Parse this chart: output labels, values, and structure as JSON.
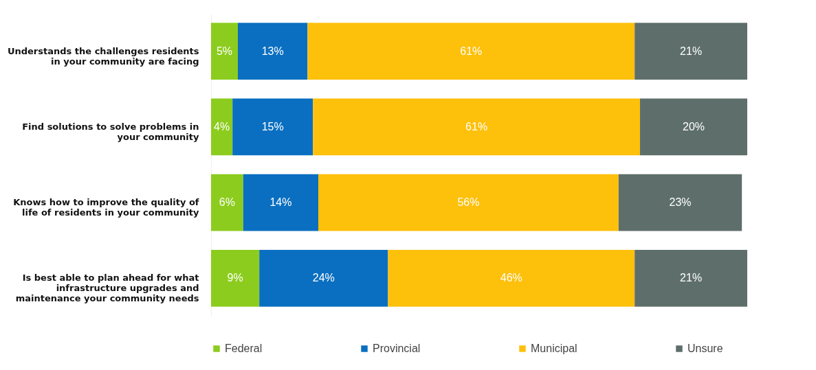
{
  "chart_data": {
    "type": "bar",
    "orientation": "horizontal",
    "stacked": true,
    "legend": "bottom",
    "categories": [
      "Understands the challenges residents in your community are facing",
      "Find solutions to solve problems in your community",
      "Knows how to improve the quality of life of residents in your community",
      "Is best able to plan ahead for what infrastructure upgrades and maintenance your community needs"
    ],
    "xlim": [
      0,
      100
    ],
    "tick_labels": "y",
    "series": [
      {
        "name": "Federal",
        "color": "#8ccc1e",
        "values": [
          5,
          4,
          6,
          9
        ],
        "value_labels": [
          "5%",
          "4%",
          "6%",
          "9%"
        ]
      },
      {
        "name": "Provincial",
        "color": "#0a6fc0",
        "values": [
          13,
          15,
          14,
          24
        ],
        "value_labels": [
          "13%",
          "15%",
          "14%",
          "24%"
        ]
      },
      {
        "name": "Municipal",
        "color": "#fdc00b",
        "values": [
          61,
          61,
          56,
          46
        ],
        "value_labels": [
          "61%",
          "61%",
          "56%",
          "46%"
        ]
      },
      {
        "name": "Unsure",
        "color": "#5e6f6b",
        "values": [
          21,
          20,
          23,
          21
        ],
        "value_labels": [
          "21%",
          "20%",
          "23%",
          "21%"
        ]
      }
    ]
  }
}
